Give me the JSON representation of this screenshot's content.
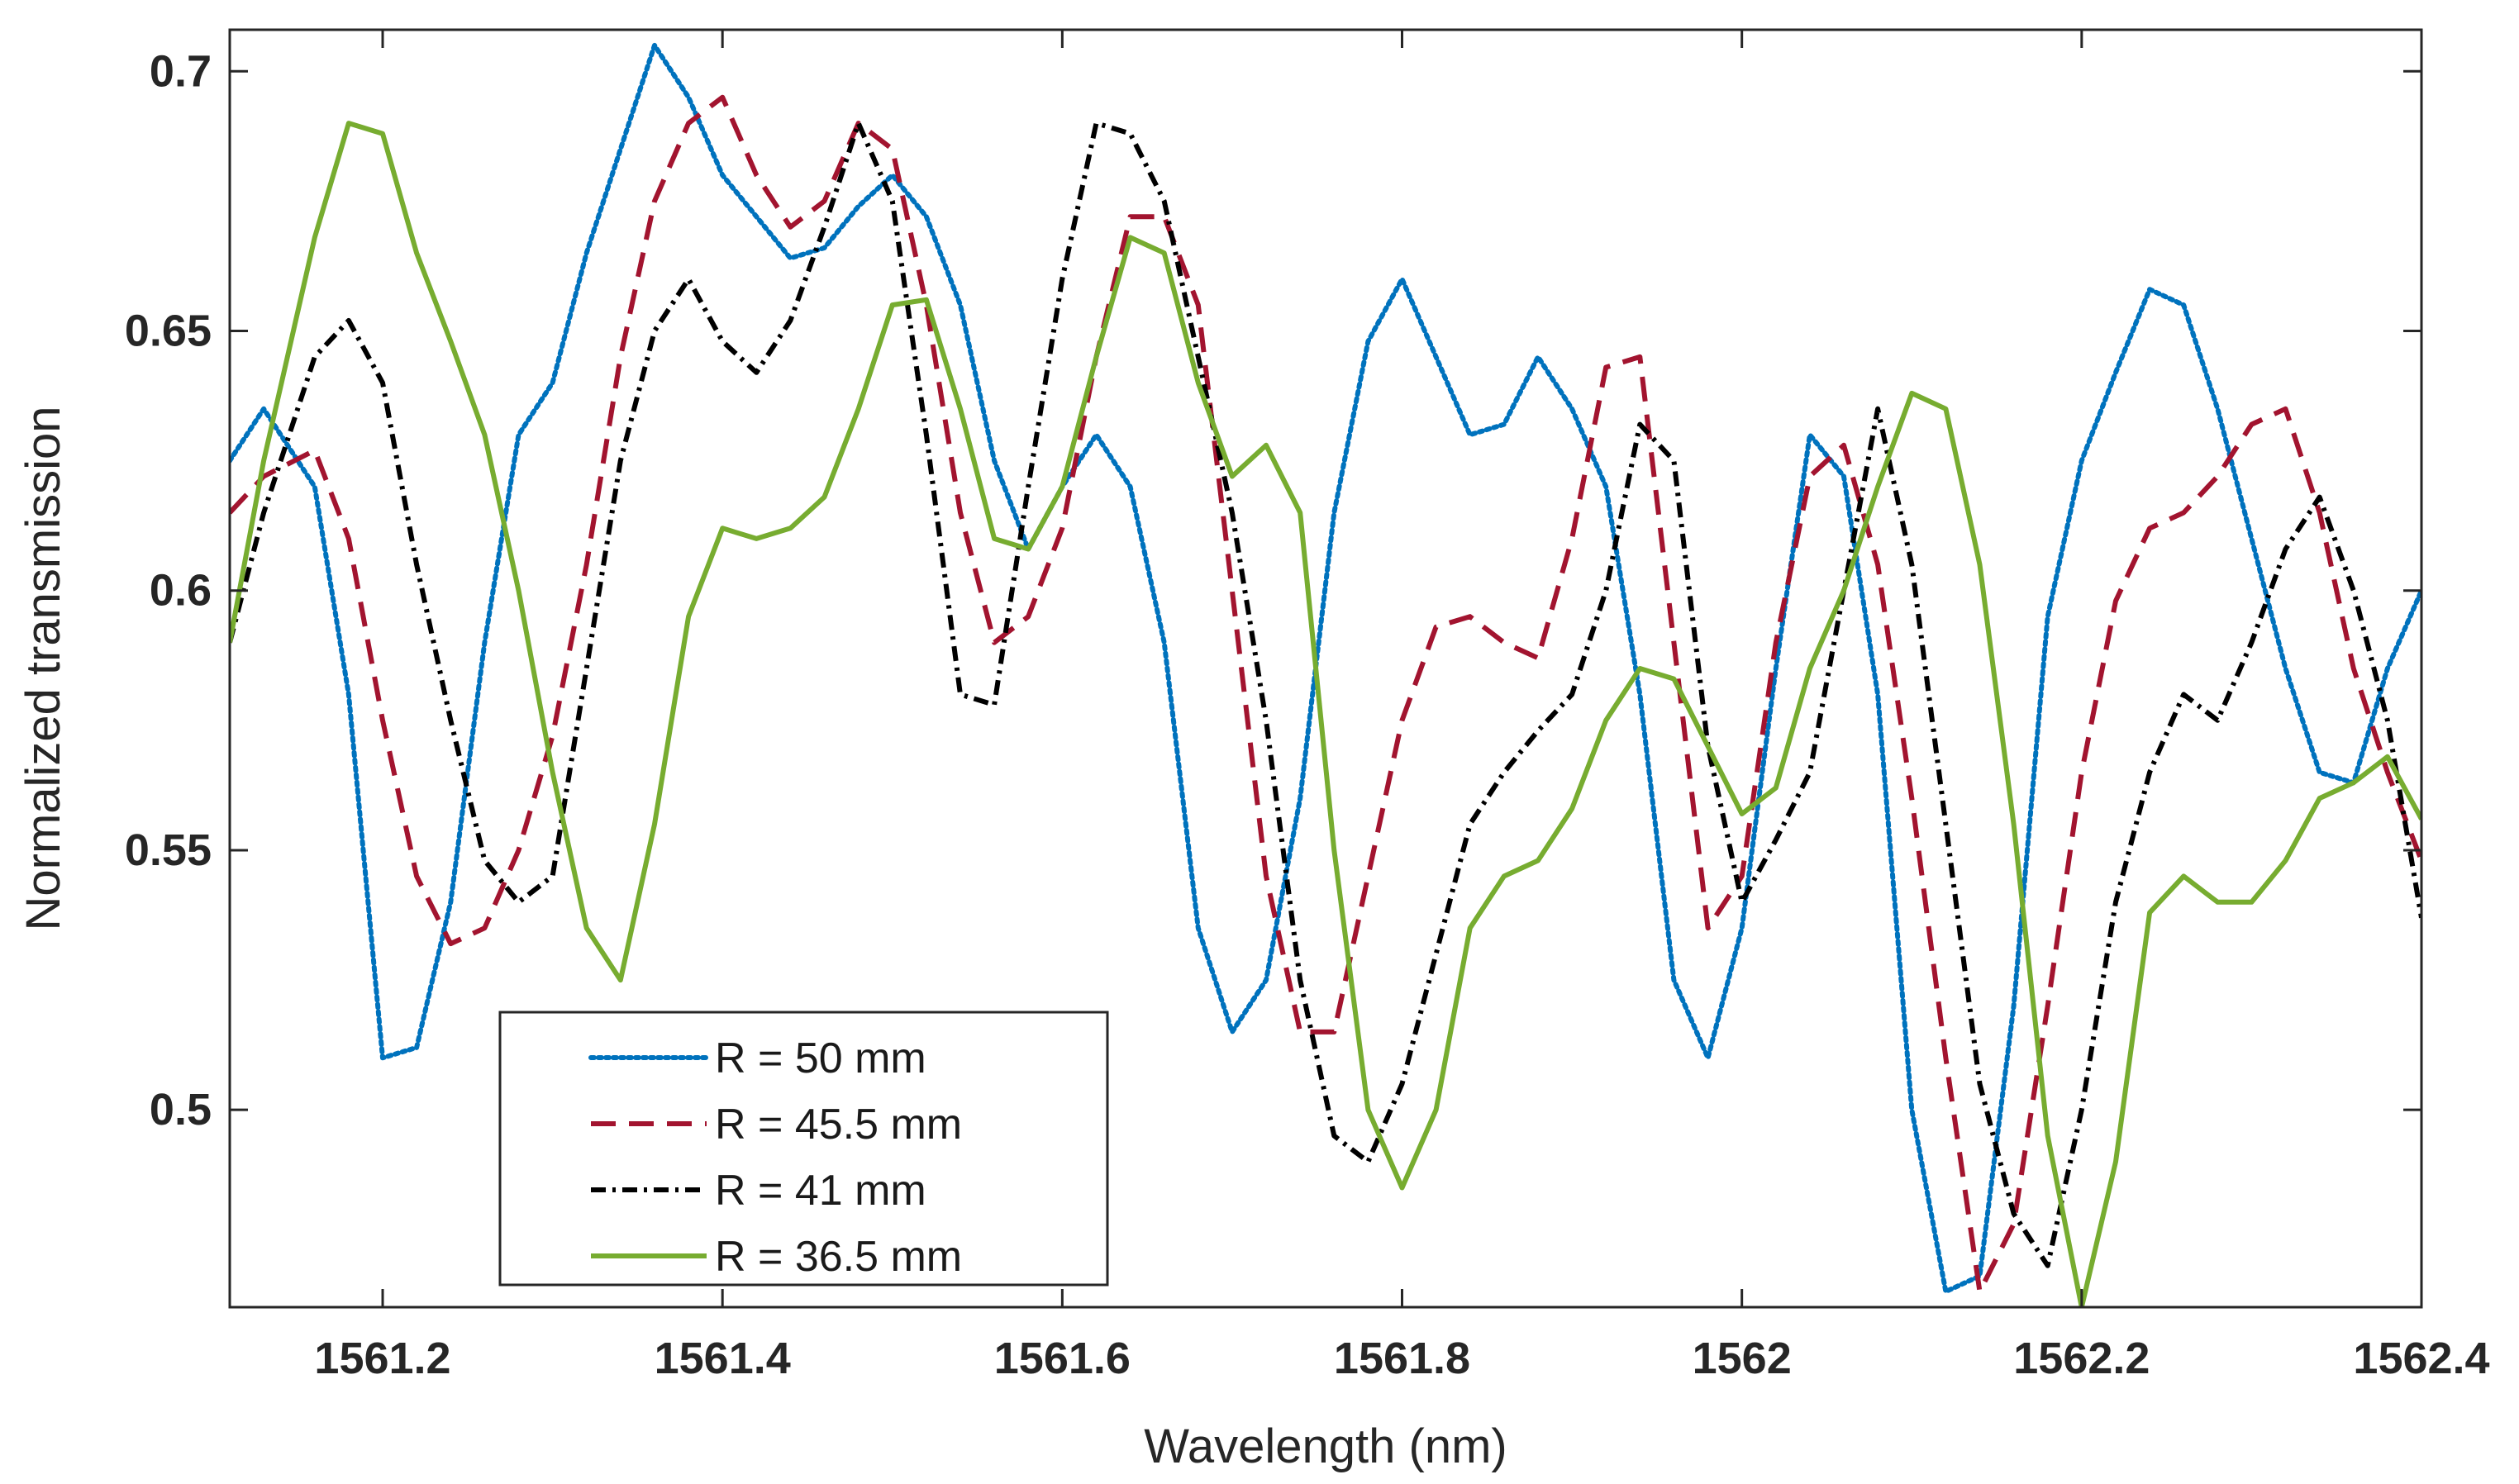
{
  "chart_data": {
    "type": "line",
    "title": "",
    "xlabel": "Wavelength (nm)",
    "ylabel": "Normalized transmission",
    "xlim": [
      1561.11,
      1562.4
    ],
    "ylim": [
      0.462,
      0.708
    ],
    "xticks": [
      1561.2,
      1561.4,
      1561.6,
      1561.8,
      1562,
      1562.2,
      1562.4
    ],
    "xtick_labels": [
      "1561.2",
      "1561.4",
      "1561.6",
      "1561.8",
      "1562",
      "1562.2",
      "1562.4"
    ],
    "yticks": [
      0.5,
      0.55,
      0.6,
      0.65,
      0.7
    ],
    "ytick_labels": [
      "0.5",
      "0.55",
      "0.6",
      "0.65",
      "0.7"
    ],
    "grid": false,
    "legend_position": "bottom-left",
    "series": [
      {
        "name": "R = 50 mm",
        "color": "#0072BD",
        "style": "dotted",
        "x": [
          1561.11,
          1561.13,
          1561.16,
          1561.18,
          1561.2,
          1561.22,
          1561.24,
          1561.26,
          1561.28,
          1561.3,
          1561.32,
          1561.34,
          1561.36,
          1561.38,
          1561.4,
          1561.42,
          1561.44,
          1561.46,
          1561.48,
          1561.5,
          1561.52,
          1561.54,
          1561.56,
          1561.58,
          1561.6,
          1561.62,
          1561.64,
          1561.66,
          1561.68,
          1561.7,
          1561.72,
          1561.74,
          1561.76,
          1561.78,
          1561.8,
          1561.82,
          1561.84,
          1561.86,
          1561.88,
          1561.9,
          1561.92,
          1561.94,
          1561.96,
          1561.98,
          1562,
          1562.02,
          1562.04,
          1562.06,
          1562.08,
          1562.1,
          1562.12,
          1562.14,
          1562.16,
          1562.18,
          1562.2,
          1562.22,
          1562.24,
          1562.26,
          1562.28,
          1562.3,
          1562.32,
          1562.34,
          1562.36,
          1562.38,
          1562.4
        ],
        "y": [
          0.625,
          0.635,
          0.62,
          0.58,
          0.51,
          0.512,
          0.54,
          0.59,
          0.63,
          0.64,
          0.665,
          0.685,
          0.705,
          0.695,
          0.68,
          0.672,
          0.664,
          0.666,
          0.674,
          0.68,
          0.672,
          0.655,
          0.625,
          0.608,
          0.62,
          0.63,
          0.62,
          0.59,
          0.535,
          0.515,
          0.525,
          0.56,
          0.615,
          0.648,
          0.66,
          0.645,
          0.63,
          0.632,
          0.645,
          0.635,
          0.62,
          0.58,
          0.525,
          0.51,
          0.535,
          0.585,
          0.63,
          0.622,
          0.58,
          0.5,
          0.465,
          0.468,
          0.52,
          0.595,
          0.625,
          0.642,
          0.658,
          0.655,
          0.635,
          0.61,
          0.585,
          0.565,
          0.563,
          0.585,
          0.6
        ]
      },
      {
        "name": "R = 45.5 mm",
        "color": "#A2142F",
        "style": "dashed",
        "x": [
          1561.11,
          1561.13,
          1561.16,
          1561.18,
          1561.2,
          1561.22,
          1561.24,
          1561.26,
          1561.28,
          1561.3,
          1561.32,
          1561.34,
          1561.36,
          1561.38,
          1561.4,
          1561.42,
          1561.44,
          1561.46,
          1561.48,
          1561.5,
          1561.52,
          1561.54,
          1561.56,
          1561.58,
          1561.6,
          1561.62,
          1561.64,
          1561.66,
          1561.68,
          1561.7,
          1561.72,
          1561.74,
          1561.76,
          1561.78,
          1561.8,
          1561.82,
          1561.84,
          1561.86,
          1561.88,
          1561.9,
          1561.92,
          1561.94,
          1561.96,
          1561.98,
          1562,
          1562.02,
          1562.04,
          1562.06,
          1562.08,
          1562.1,
          1562.12,
          1562.14,
          1562.16,
          1562.18,
          1562.2,
          1562.22,
          1562.24,
          1562.26,
          1562.28,
          1562.3,
          1562.32,
          1562.34,
          1562.36,
          1562.38,
          1562.4
        ],
        "y": [
          0.615,
          0.622,
          0.627,
          0.61,
          0.575,
          0.545,
          0.532,
          0.535,
          0.55,
          0.572,
          0.605,
          0.645,
          0.675,
          0.69,
          0.695,
          0.68,
          0.67,
          0.675,
          0.69,
          0.685,
          0.655,
          0.615,
          0.59,
          0.595,
          0.612,
          0.645,
          0.672,
          0.672,
          0.655,
          0.6,
          0.545,
          0.515,
          0.515,
          0.545,
          0.575,
          0.593,
          0.595,
          0.59,
          0.587,
          0.61,
          0.643,
          0.645,
          0.59,
          0.535,
          0.545,
          0.59,
          0.622,
          0.628,
          0.605,
          0.56,
          0.51,
          0.465,
          0.478,
          0.52,
          0.565,
          0.598,
          0.612,
          0.615,
          0.622,
          0.632,
          0.635,
          0.615,
          0.585,
          0.565,
          0.548
        ]
      },
      {
        "name": "R = 41 mm",
        "color": "#000000",
        "style": "dashdot",
        "x": [
          1561.11,
          1561.13,
          1561.16,
          1561.18,
          1561.2,
          1561.22,
          1561.24,
          1561.26,
          1561.28,
          1561.3,
          1561.32,
          1561.34,
          1561.36,
          1561.38,
          1561.4,
          1561.42,
          1561.44,
          1561.46,
          1561.48,
          1561.5,
          1561.52,
          1561.54,
          1561.56,
          1561.58,
          1561.6,
          1561.62,
          1561.64,
          1561.66,
          1561.68,
          1561.7,
          1561.72,
          1561.74,
          1561.76,
          1561.78,
          1561.8,
          1561.82,
          1561.84,
          1561.86,
          1561.88,
          1561.9,
          1561.92,
          1561.94,
          1561.96,
          1561.98,
          1562,
          1562.02,
          1562.04,
          1562.06,
          1562.08,
          1562.1,
          1562.12,
          1562.14,
          1562.16,
          1562.18,
          1562.2,
          1562.22,
          1562.24,
          1562.26,
          1562.28,
          1562.3,
          1562.32,
          1562.34,
          1562.36,
          1562.38,
          1562.4
        ],
        "y": [
          0.59,
          0.615,
          0.645,
          0.652,
          0.64,
          0.605,
          0.575,
          0.548,
          0.54,
          0.545,
          0.585,
          0.625,
          0.65,
          0.66,
          0.648,
          0.642,
          0.652,
          0.67,
          0.69,
          0.675,
          0.63,
          0.58,
          0.578,
          0.62,
          0.66,
          0.69,
          0.688,
          0.675,
          0.645,
          0.615,
          0.575,
          0.525,
          0.495,
          0.49,
          0.505,
          0.53,
          0.555,
          0.565,
          0.573,
          0.58,
          0.6,
          0.632,
          0.625,
          0.57,
          0.54,
          0.552,
          0.565,
          0.6,
          0.635,
          0.605,
          0.555,
          0.505,
          0.48,
          0.47,
          0.5,
          0.54,
          0.565,
          0.58,
          0.575,
          0.59,
          0.608,
          0.618,
          0.6,
          0.575,
          0.537
        ]
      },
      {
        "name": "R = 36.5 mm",
        "color": "#77AC30",
        "style": "solid",
        "x": [
          1561.11,
          1561.13,
          1561.16,
          1561.18,
          1561.2,
          1561.22,
          1561.24,
          1561.26,
          1561.28,
          1561.3,
          1561.32,
          1561.34,
          1561.36,
          1561.38,
          1561.4,
          1561.42,
          1561.44,
          1561.46,
          1561.48,
          1561.5,
          1561.52,
          1561.54,
          1561.56,
          1561.58,
          1561.6,
          1561.62,
          1561.64,
          1561.66,
          1561.68,
          1561.7,
          1561.72,
          1561.74,
          1561.76,
          1561.78,
          1561.8,
          1561.82,
          1561.84,
          1561.86,
          1561.88,
          1561.9,
          1561.92,
          1561.94,
          1561.96,
          1561.98,
          1562,
          1562.02,
          1562.04,
          1562.06,
          1562.08,
          1562.1,
          1562.12,
          1562.14,
          1562.16,
          1562.18,
          1562.2,
          1562.22,
          1562.24,
          1562.26,
          1562.28,
          1562.3,
          1562.32,
          1562.34,
          1562.36,
          1562.38,
          1562.4
        ],
        "y": [
          0.59,
          0.625,
          0.668,
          0.69,
          0.688,
          0.665,
          0.648,
          0.63,
          0.6,
          0.565,
          0.535,
          0.525,
          0.555,
          0.595,
          0.612,
          0.61,
          0.612,
          0.618,
          0.635,
          0.655,
          0.656,
          0.635,
          0.61,
          0.608,
          0.62,
          0.645,
          0.668,
          0.665,
          0.64,
          0.622,
          0.628,
          0.615,
          0.55,
          0.5,
          0.485,
          0.5,
          0.535,
          0.545,
          0.548,
          0.558,
          0.575,
          0.585,
          0.583,
          0.57,
          0.557,
          0.562,
          0.585,
          0.6,
          0.62,
          0.638,
          0.635,
          0.605,
          0.555,
          0.495,
          0.462,
          0.49,
          0.538,
          0.545,
          0.54,
          0.54,
          0.548,
          0.56,
          0.563,
          0.568,
          0.556
        ]
      }
    ]
  }
}
